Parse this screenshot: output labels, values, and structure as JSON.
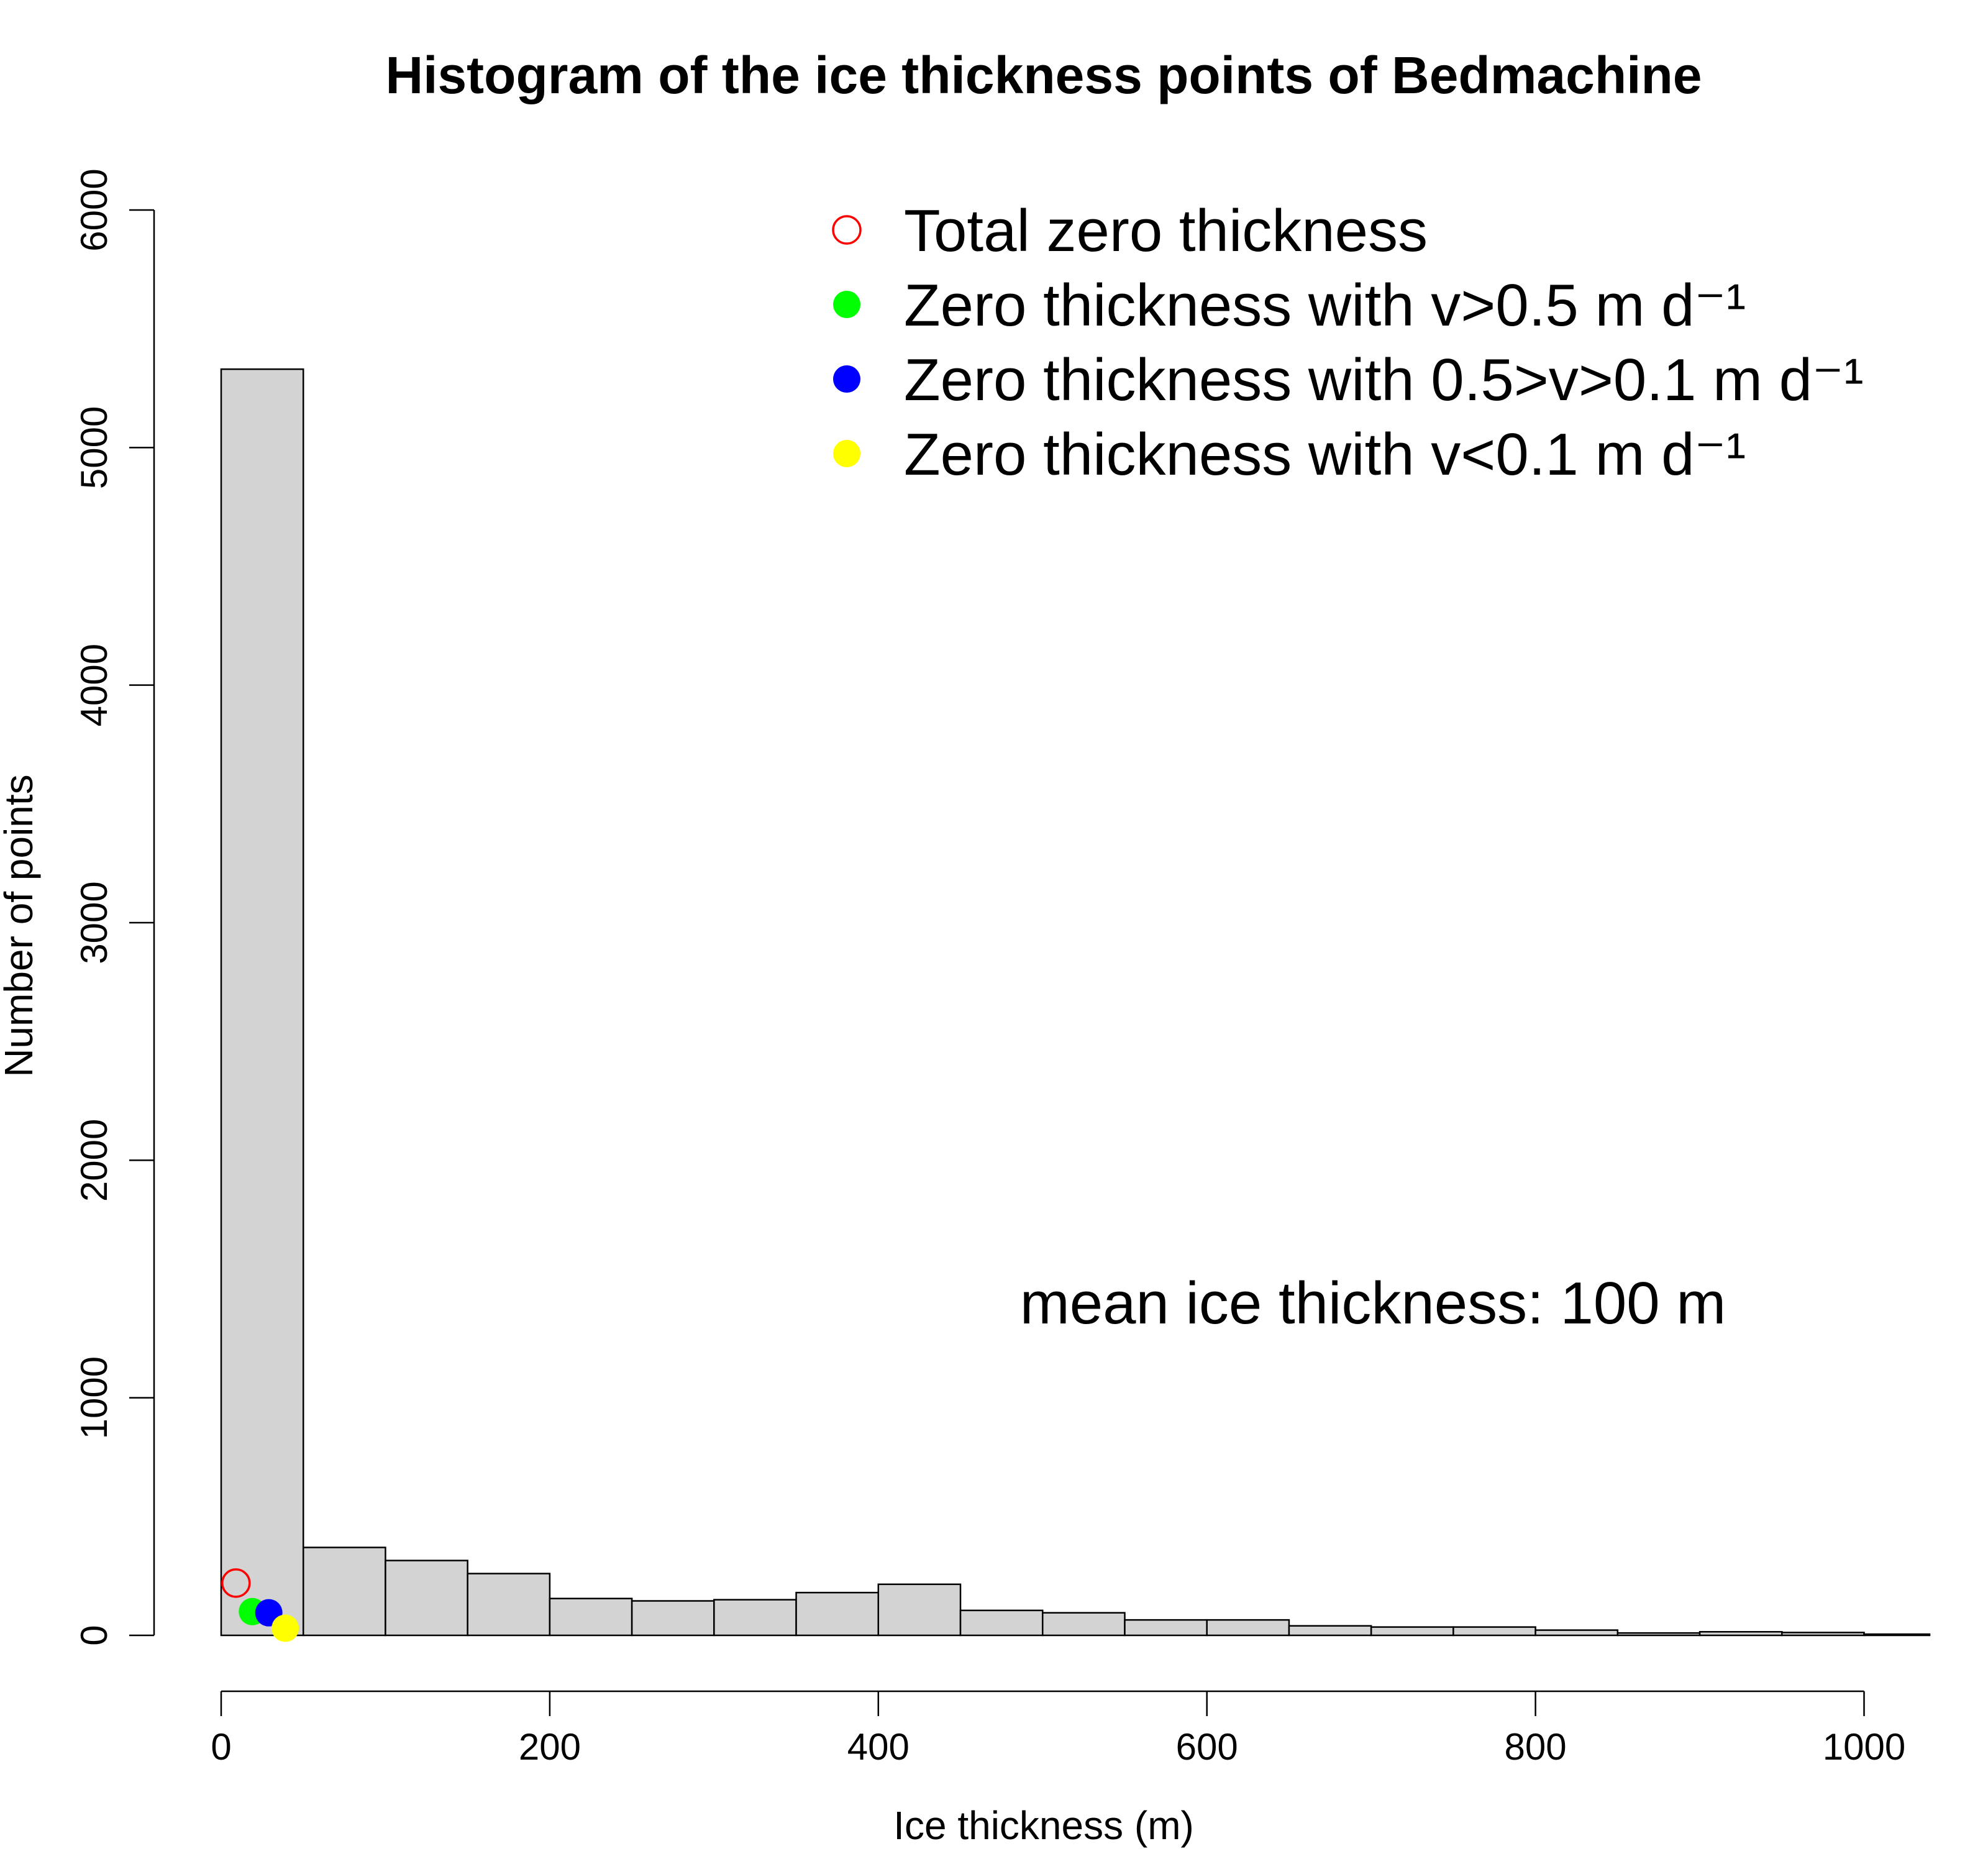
{
  "chart_data": {
    "type": "bar",
    "title": "Histogram of the ice thickness points of Bedmachine",
    "xlabel": "Ice thickness (m)",
    "ylabel": "Number of points",
    "xlim": [
      0,
      1040
    ],
    "ylim": [
      0,
      6000
    ],
    "x_ticks": [
      "0",
      "200",
      "400",
      "600",
      "800",
      "1000"
    ],
    "y_ticks": [
      "0",
      "1000",
      "2000",
      "3000",
      "4000",
      "5000",
      "6000"
    ],
    "bin_width": 50,
    "bins": [
      {
        "from": 0,
        "to": 50,
        "count": 5330
      },
      {
        "from": 50,
        "to": 100,
        "count": 370
      },
      {
        "from": 100,
        "to": 150,
        "count": 315
      },
      {
        "from": 150,
        "to": 200,
        "count": 260
      },
      {
        "from": 200,
        "to": 250,
        "count": 155
      },
      {
        "from": 250,
        "to": 300,
        "count": 145
      },
      {
        "from": 300,
        "to": 350,
        "count": 150
      },
      {
        "from": 350,
        "to": 400,
        "count": 180
      },
      {
        "from": 400,
        "to": 450,
        "count": 215
      },
      {
        "from": 450,
        "to": 500,
        "count": 105
      },
      {
        "from": 500,
        "to": 550,
        "count": 95
      },
      {
        "from": 550,
        "to": 600,
        "count": 65
      },
      {
        "from": 600,
        "to": 650,
        "count": 65
      },
      {
        "from": 650,
        "to": 700,
        "count": 40
      },
      {
        "from": 700,
        "to": 750,
        "count": 35
      },
      {
        "from": 750,
        "to": 800,
        "count": 35
      },
      {
        "from": 800,
        "to": 850,
        "count": 22
      },
      {
        "from": 850,
        "to": 900,
        "count": 10
      },
      {
        "from": 900,
        "to": 950,
        "count": 15
      },
      {
        "from": 950,
        "to": 1000,
        "count": 12
      },
      {
        "from": 1000,
        "to": 1050,
        "count": 5
      }
    ],
    "bar_fill": "#d3d3d3",
    "bar_stroke": "#000000",
    "markers": [
      {
        "name": "Total zero thickness",
        "x": 9,
        "y": 220,
        "color": "#ff0000",
        "filled": false,
        "icon": "open-circle"
      },
      {
        "name": "Zero thickness with v>0.5 m d⁻¹",
        "x": 19,
        "y": 100,
        "color": "#00ff00",
        "filled": true,
        "icon": "filled-circle"
      },
      {
        "name": "Zero thickness with 0.5>v>0.1 m d⁻¹",
        "x": 29,
        "y": 95,
        "color": "#0000ff",
        "filled": true,
        "icon": "filled-circle"
      },
      {
        "name": "Zero thickness with v<0.1 m d⁻¹",
        "x": 39,
        "y": 30,
        "color": "#ffff00",
        "filled": true,
        "icon": "filled-circle"
      }
    ],
    "legend_position": "top-right",
    "annotation": "mean ice thickness: 100 m",
    "grid": false
  }
}
